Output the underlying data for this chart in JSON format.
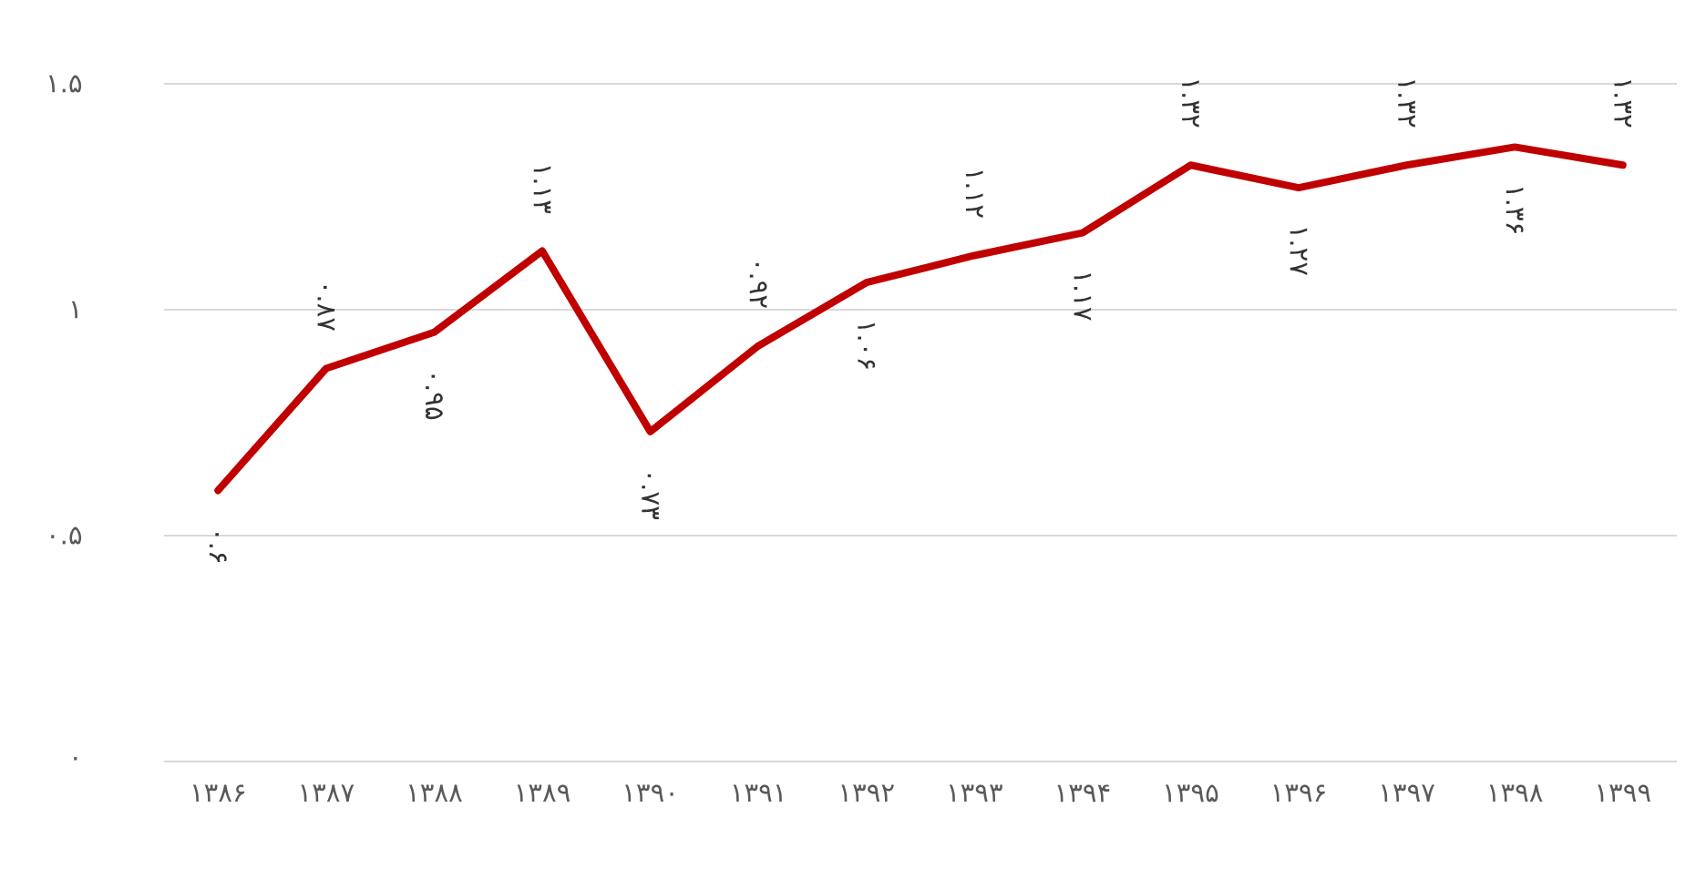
{
  "chart_data": {
    "type": "line",
    "categories": [
      "۱۳۸۶",
      "۱۳۸۷",
      "۱۳۸۸",
      "۱۳۸۹",
      "۱۳۹۰",
      "۱۳۹۱",
      "۱۳۹۲",
      "۱۳۹۳",
      "۱۳۹۴",
      "۱۳۹۵",
      "۱۳۹۶",
      "۱۳۹۷",
      "۱۳۹۸",
      "۱۳۹۹"
    ],
    "values": [
      0.6,
      0.87,
      0.95,
      1.13,
      0.73,
      0.92,
      1.06,
      1.12,
      1.17,
      1.32,
      1.27,
      1.32,
      1.36,
      1.32
    ],
    "value_labels": [
      "۰.۶",
      "۰.۸۷",
      "۰.۹۵",
      "۱.۱۳",
      "۰.۷۳",
      "۰.۹۲",
      "۱.۰۶",
      "۱.۱۲",
      "۱.۱۷",
      "۱.۳۲",
      "۱.۲۷",
      "۱.۳۲",
      "۱.۳۶",
      "۱.۳۲"
    ],
    "color": "#c00000",
    "ylim": [
      0,
      1.5
    ],
    "yticks": [
      {
        "value": 0,
        "label": "۰"
      },
      {
        "value": 0.5,
        "label": "۰.۵"
      },
      {
        "value": 1,
        "label": "۱"
      },
      {
        "value": 1.5,
        "label": "۱.۵"
      }
    ],
    "grid": "y",
    "marker": "none",
    "line_style": "solid"
  }
}
